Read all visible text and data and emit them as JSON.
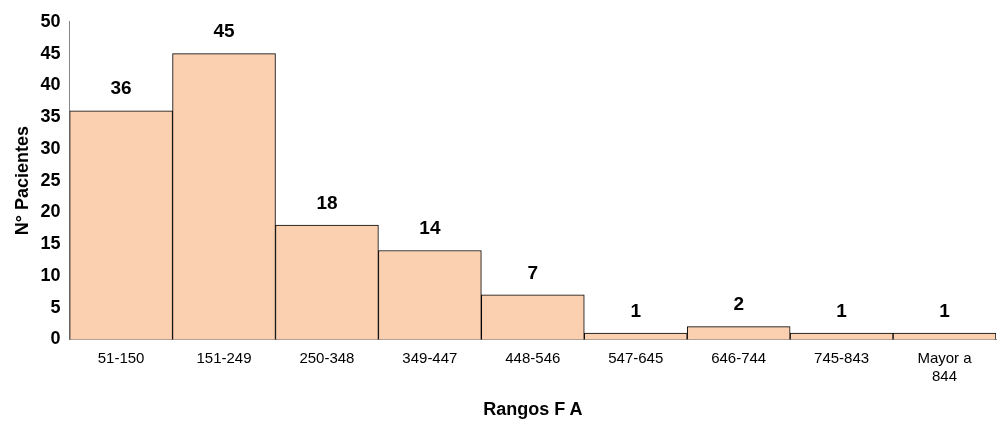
{
  "chart_data": {
    "type": "bar",
    "xlabel": "Rangos F A",
    "ylabel": "N° Pacientes",
    "categories": [
      "51-150",
      "151-249",
      "250-348",
      "349-447",
      "448-546",
      "547-645",
      "646-744",
      "745-843",
      "Mayor a 844"
    ],
    "values": [
      36,
      45,
      18,
      14,
      7,
      1,
      2,
      1,
      1
    ],
    "color": "#fad0b0",
    "ylim": [
      0,
      50
    ],
    "yticks": [
      0,
      5,
      10,
      15,
      20,
      25,
      30,
      35,
      40,
      45,
      50
    ],
    "grid": false,
    "legend": false,
    "data_labels": true
  }
}
